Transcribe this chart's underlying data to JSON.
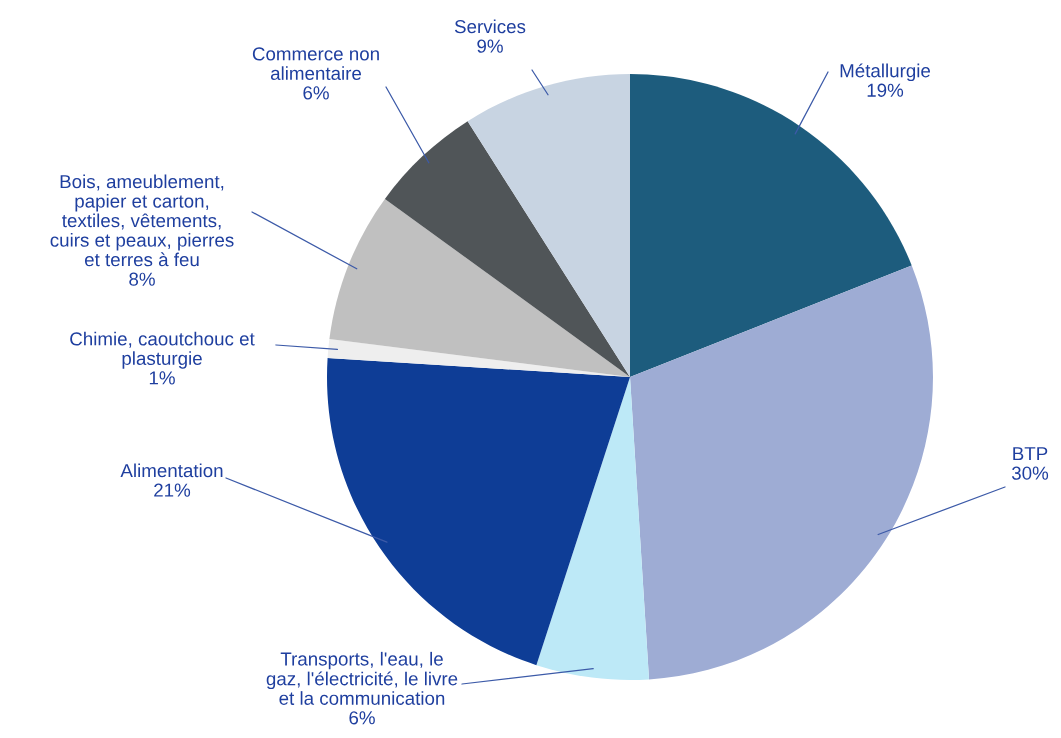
{
  "chart_data": {
    "type": "pie",
    "categories": [
      "Métallurgie",
      "BTP",
      "Transports, l'eau, le\ngaz, l'électricité, le livre\net la communication",
      "Alimentation",
      "Chimie, caoutchouc et\nplasturgie",
      "Bois, ameublement,\npapier et carton,\ntextiles, vêtements,\ncuirs et peaux, pierres\net terres à feu",
      "Commerce non\nalimentaire",
      "Services"
    ],
    "values": [
      19,
      30,
      6,
      21,
      1,
      8,
      6,
      9
    ],
    "value_labels": [
      "19%",
      "30%",
      "6%",
      "21%",
      "1%",
      "8%",
      "6%",
      "9%"
    ],
    "colors": [
      "#1d5c7d",
      "#9eacd4",
      "#bde9f7",
      "#0e3d96",
      "#eeeeee",
      "#c0c0c0",
      "#505558",
      "#c8d4e2"
    ]
  }
}
